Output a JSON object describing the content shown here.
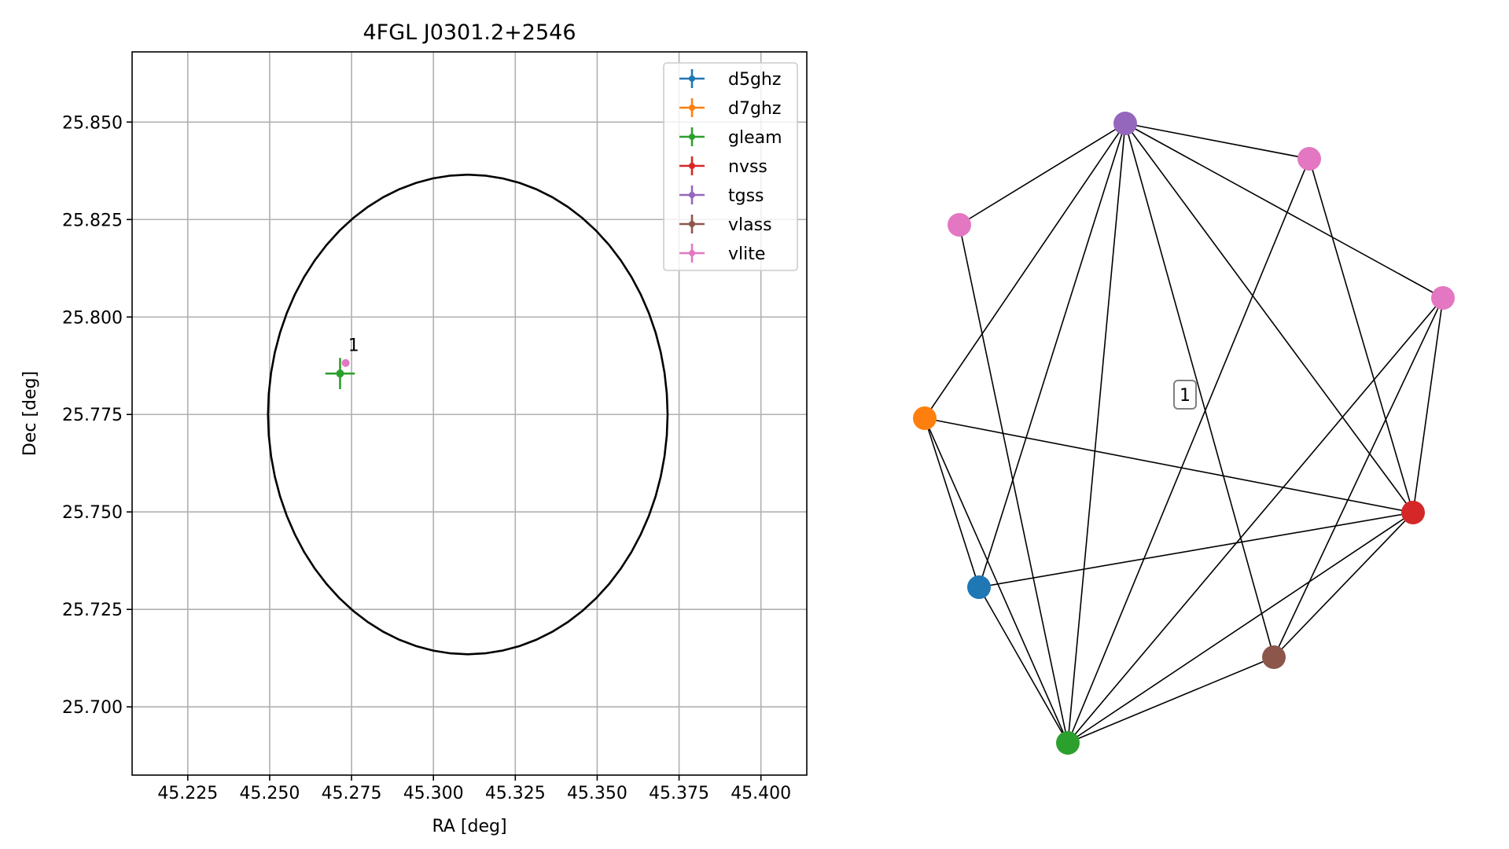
{
  "colors": {
    "d5ghz": "#1f77b4",
    "d7ghz": "#ff7f0e",
    "gleam": "#2ca02c",
    "nvss": "#d62728",
    "tgss": "#9467bd",
    "vlass": "#8c564b",
    "vlite": "#e377c2"
  },
  "chart_data": [
    {
      "type": "scatter",
      "title": "4FGL J0301.2+2546",
      "xlabel": "RA [deg]",
      "ylabel": "Dec [deg]",
      "xlim": [
        45.208,
        45.414
      ],
      "ylim": [
        25.6825,
        25.868
      ],
      "grid": true,
      "legend_location": "top-right",
      "xticks": [
        "45.225",
        "45.250",
        "45.275",
        "45.300",
        "45.325",
        "45.350",
        "45.375",
        "45.400"
      ],
      "yticks": [
        "25.700",
        "25.725",
        "25.750",
        "25.775",
        "25.800",
        "25.825",
        "25.850"
      ],
      "legend": [
        "d5ghz",
        "d7ghz",
        "gleam",
        "nvss",
        "tgss",
        "vlass",
        "vlite"
      ],
      "ellipse": {
        "center": [
          45.3105,
          25.775
        ],
        "semi_ra": 0.061,
        "semi_dec": 0.0615
      },
      "points": [
        {
          "series": "gleam",
          "ra": 45.2715,
          "dec": 25.7855,
          "ra_err": 0.0045,
          "dec_err": 0.004
        },
        {
          "series": "vlite",
          "ra": 45.2732,
          "dec": 25.7882,
          "ra_err": 0.0008,
          "dec_err": 0.0008
        }
      ],
      "annotations": [
        {
          "text": "1",
          "ra": 45.2735,
          "dec": 25.7905
        }
      ]
    },
    {
      "type": "network",
      "label": "1",
      "nodes": [
        {
          "id": "tgss",
          "series": "tgss"
        },
        {
          "id": "vlite-a",
          "series": "vlite"
        },
        {
          "id": "vlite-b",
          "series": "vlite"
        },
        {
          "id": "vlite-c",
          "series": "vlite"
        },
        {
          "id": "d7ghz",
          "series": "d7ghz"
        },
        {
          "id": "nvss",
          "series": "nvss"
        },
        {
          "id": "d5ghz",
          "series": "d5ghz"
        },
        {
          "id": "vlass",
          "series": "vlass"
        },
        {
          "id": "gleam",
          "series": "gleam"
        }
      ],
      "edges": [
        [
          "tgss",
          "vlite-a"
        ],
        [
          "tgss",
          "vlite-b"
        ],
        [
          "tgss",
          "vlite-c"
        ],
        [
          "tgss",
          "d7ghz"
        ],
        [
          "tgss",
          "nvss"
        ],
        [
          "tgss",
          "d5ghz"
        ],
        [
          "tgss",
          "vlass"
        ],
        [
          "tgss",
          "gleam"
        ],
        [
          "vlite-a",
          "gleam"
        ],
        [
          "vlite-b",
          "nvss"
        ],
        [
          "vlite-b",
          "gleam"
        ],
        [
          "vlite-c",
          "nvss"
        ],
        [
          "vlite-c",
          "vlass"
        ],
        [
          "vlite-c",
          "gleam"
        ],
        [
          "d7ghz",
          "nvss"
        ],
        [
          "d7ghz",
          "d5ghz"
        ],
        [
          "d7ghz",
          "gleam"
        ],
        [
          "nvss",
          "d5ghz"
        ],
        [
          "nvss",
          "vlass"
        ],
        [
          "nvss",
          "gleam"
        ],
        [
          "d5ghz",
          "gleam"
        ],
        [
          "vlass",
          "gleam"
        ]
      ]
    }
  ]
}
